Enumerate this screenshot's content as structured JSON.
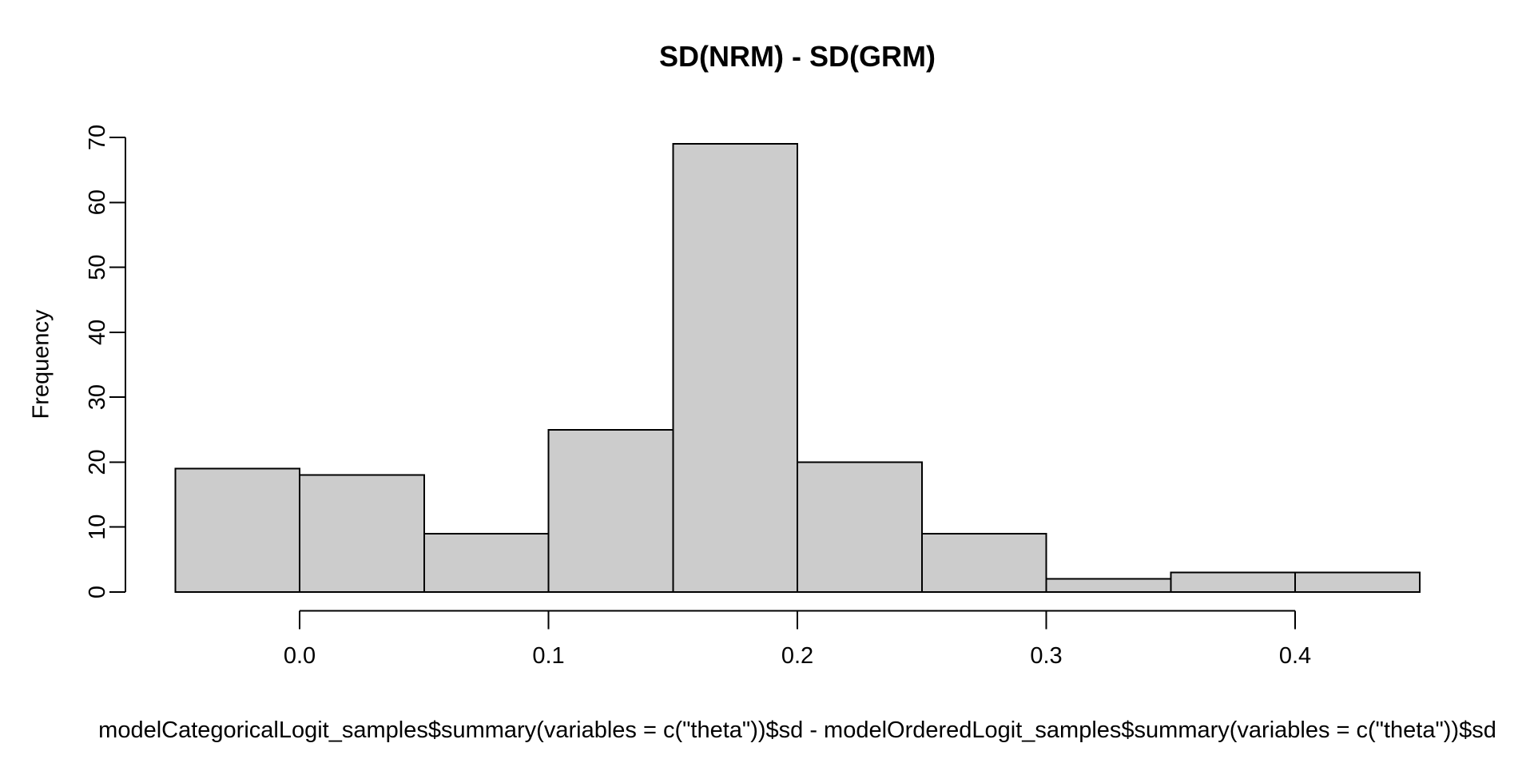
{
  "chart_data": {
    "type": "bar",
    "subtype": "histogram",
    "title": "SD(NRM) - SD(GRM)",
    "ylabel": "Frequency",
    "xlabel": "modelCategoricalLogit_samples$summary(variables = c(\"theta\"))$sd - modelOrderedLogit_samples$summary(variables = c(\"theta\"))$sd",
    "bin_edges": [
      -0.05,
      0.0,
      0.05,
      0.1,
      0.15,
      0.2,
      0.25,
      0.3,
      0.35,
      0.4,
      0.45
    ],
    "counts": [
      19,
      18,
      9,
      25,
      69,
      20,
      9,
      2,
      3,
      3
    ],
    "x_ticks": [
      0.0,
      0.1,
      0.2,
      0.3,
      0.4
    ],
    "x_tick_labels": [
      "0.0",
      "0.1",
      "0.2",
      "0.3",
      "0.4"
    ],
    "y_ticks": [
      0,
      10,
      20,
      30,
      40,
      50,
      60,
      70
    ],
    "y_tick_labels": [
      "0",
      "10",
      "20",
      "30",
      "40",
      "50",
      "60",
      "70"
    ],
    "xlim": [
      -0.05,
      0.45
    ],
    "ylim": [
      0,
      70
    ],
    "grid": false,
    "legend": null,
    "colors": {
      "bar_fill": "#cccccc",
      "bar_stroke": "#000000",
      "axis": "#000000",
      "text": "#000000",
      "background": "#ffffff"
    }
  }
}
